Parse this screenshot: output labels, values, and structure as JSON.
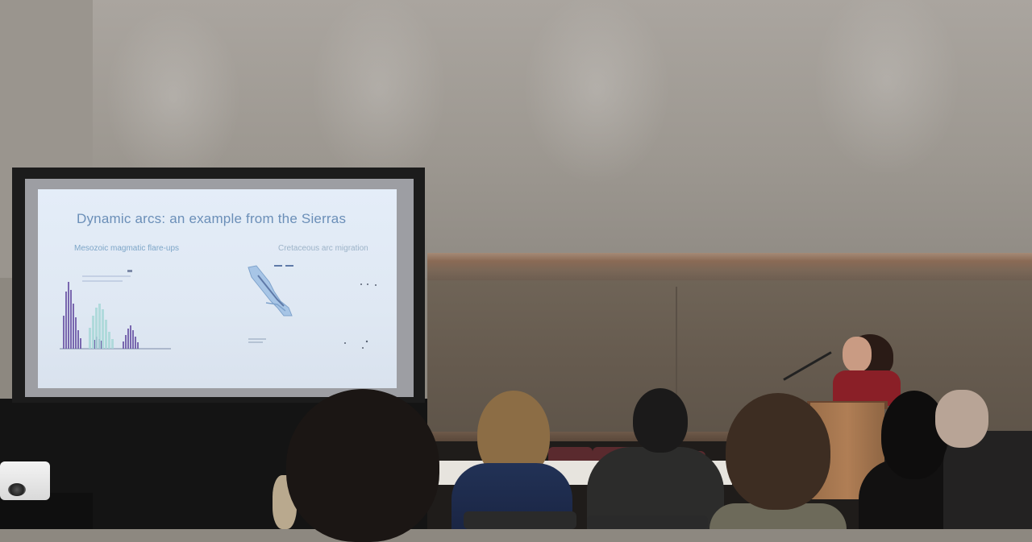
{
  "scene": "presentation-room",
  "slide": {
    "title": "Dynamic arcs: an example from the Sierras",
    "left_subtitle": "Mesozoic magmatic flare-ups",
    "right_subtitle": "Cretaceous arc migration"
  },
  "colors": {
    "slide_title": "#6b8fb8",
    "histogram_purple": "#6f5aa8",
    "histogram_teal": "#a8d8d8",
    "speaker_top": "#8a1f27",
    "lectern": "#b07e55"
  }
}
